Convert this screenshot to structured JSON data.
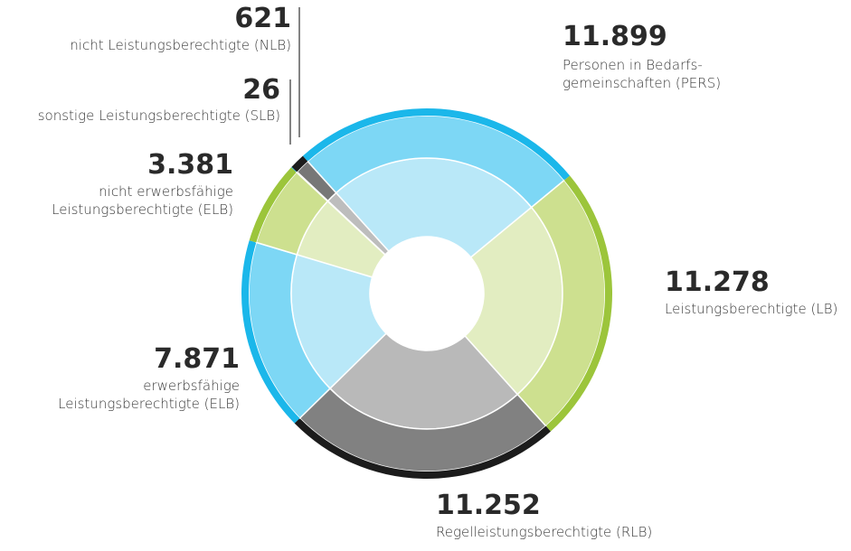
{
  "chart_data": {
    "type": "pie",
    "categories": [
      "Personen in Bedarfs-\ngemeinschaften (PERS)",
      "Leistungsberechtigte (LB)",
      "Regelleistungsberechtigte (RLB)",
      "erwerbsfähige\nLeistungsberechtigte (ELB)",
      "nicht erwerbsfähige\nLeistungsberechtigte (ELB)",
      "sonstige Leistungsberechtigte (SLB)",
      "nicht Leistungsberechtigte (NLB)"
    ],
    "values": [
      11899,
      11278,
      11252,
      7871,
      3381,
      26,
      621
    ],
    "value_labels": [
      "11.899",
      "11.278",
      "11.252",
      "7.871",
      "3.381",
      "26",
      "621"
    ],
    "colors": [
      [
        "#b9e8f8",
        "#7dd7f5",
        "#1bb7ea"
      ],
      [
        "#e2edc1",
        "#cde08f",
        "#9cc53b"
      ],
      [
        "#b9b9b9",
        "#818181",
        "#1c1c1c"
      ],
      [
        "#b9e8f8",
        "#7dd7f5",
        "#1bb7ea"
      ],
      [
        "#e2edc1",
        "#cde08f",
        "#9cc53b"
      ],
      [
        "#b9e8f8",
        "#7dd7f5",
        "#1bb7ea"
      ],
      [
        "#bdbdbd",
        "#777777",
        "#1c1c1c"
      ]
    ]
  }
}
